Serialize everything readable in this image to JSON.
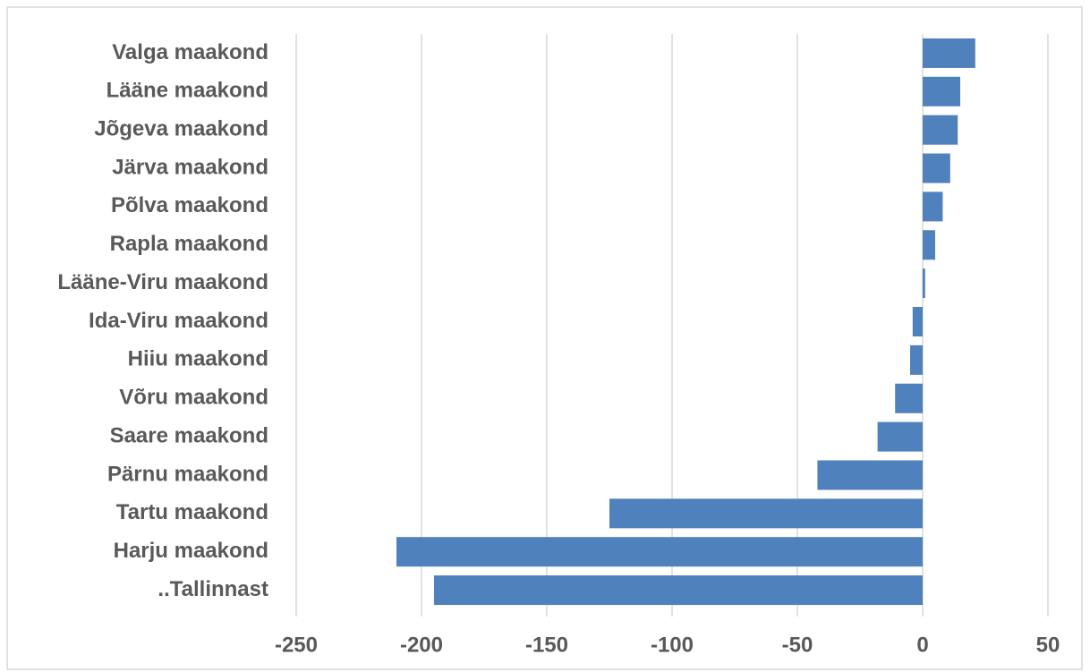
{
  "chart_data": {
    "type": "bar",
    "orientation": "horizontal",
    "categories": [
      "Valga maakond",
      "Lääne maakond",
      "Jõgeva maakond",
      "Järva maakond",
      "Põlva maakond",
      "Rapla maakond",
      "Lääne-Viru maakond",
      "Ida-Viru maakond",
      "Hiiu maakond",
      "Võru maakond",
      "Saare maakond",
      "Pärnu maakond",
      "Tartu maakond",
      "Harju maakond",
      "..Tallinnast"
    ],
    "values": [
      21,
      15,
      14,
      11,
      8,
      5,
      1,
      -4,
      -5,
      -11,
      -18,
      -42,
      -125,
      -210,
      -195
    ],
    "color": "#4f81bd",
    "xlim": [
      -250,
      50
    ],
    "xticks": [
      -250,
      -200,
      -150,
      -100,
      -50,
      0,
      50
    ],
    "grid": true
  }
}
